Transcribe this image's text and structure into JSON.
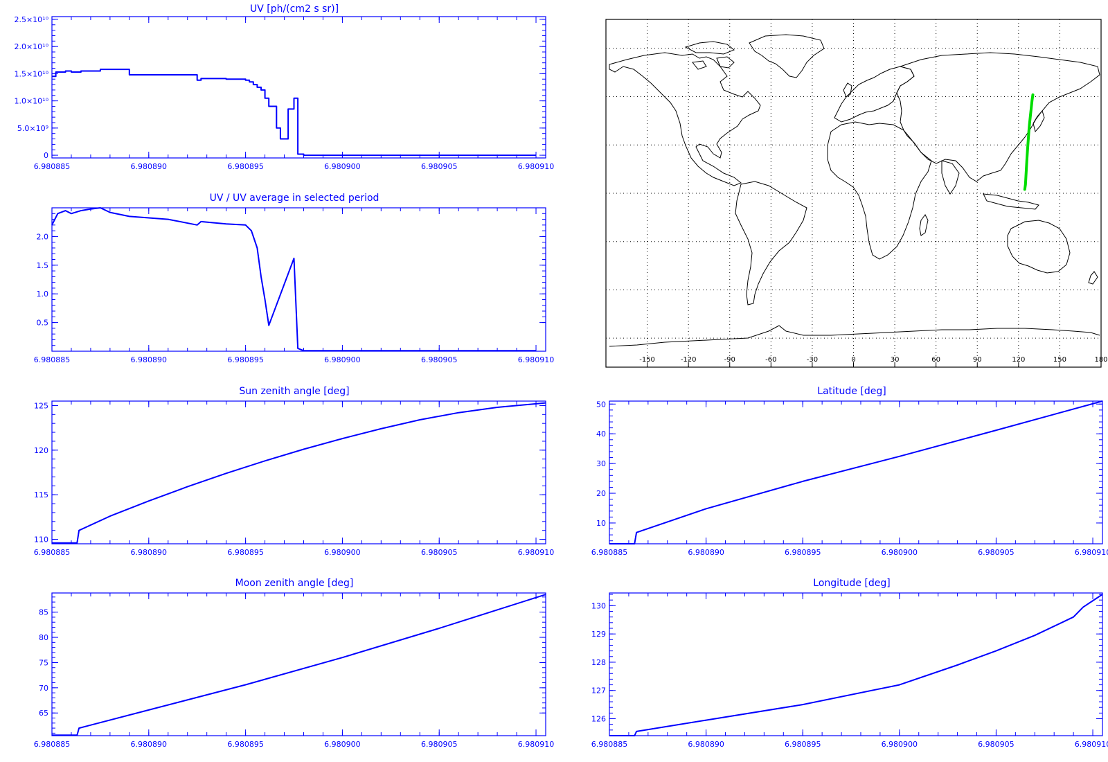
{
  "chart_data": [
    {
      "id": "uv",
      "type": "line",
      "step": true,
      "title": "UV [ph/(cm2 s sr)]",
      "xlabel": "",
      "ylabel": "",
      "xlim": [
        6.980885,
        6.9809105
      ],
      "ylim": [
        -500000000.0,
        25500000000.0
      ],
      "xtick_values": [
        6.980885,
        6.98089,
        6.980895,
        6.9809,
        6.980905,
        6.98091
      ],
      "xtick_labels": [
        "6.980885",
        "6.980890",
        "6.980895",
        "6.980900",
        "6.980905",
        "6.980910"
      ],
      "ytick_values": [
        0,
        5000000000.0,
        10000000000.0,
        15000000000.0,
        20000000000.0,
        25000000000.0
      ],
      "ytick_labels": [
        "0",
        "5.0×10⁹",
        "1.0×10¹⁰",
        "1.5×10¹⁰",
        "2.0×10¹⁰",
        "2.5×10¹⁰"
      ],
      "series": [
        {
          "color": "#0000ff",
          "x": [
            6.980885,
            6.9808852,
            6.9808857,
            6.980886,
            6.9808865,
            6.9808875,
            6.980889,
            6.9808925,
            6.9808927,
            6.980894,
            6.980895,
            6.9808952,
            6.9808954,
            6.9808956,
            6.9808958,
            6.980896,
            6.9808962,
            6.9808966,
            6.9808968,
            6.980897,
            6.9808972,
            6.9808975,
            6.9808977,
            6.980898,
            6.98091
          ],
          "values": [
            14500000000.0,
            15300000000.0,
            15500000000.0,
            15300000000.0,
            15500000000.0,
            15800000000.0,
            14800000000.0,
            13800000000.0,
            14100000000.0,
            14000000000.0,
            13800000000.0,
            13500000000.0,
            13000000000.0,
            12500000000.0,
            12000000000.0,
            10500000000.0,
            9000000000.0,
            5000000000.0,
            3000000000.0,
            3000000000.0,
            8500000000.0,
            10500000000.0,
            200000000.0,
            0.0,
            0.0
          ]
        }
      ]
    },
    {
      "id": "uv_ratio",
      "type": "line",
      "title": "UV / UV average in selected period",
      "xlabel": "",
      "ylabel": "",
      "xlim": [
        6.980885,
        6.9809105
      ],
      "ylim": [
        0.0,
        2.5
      ],
      "xtick_values": [
        6.980885,
        6.98089,
        6.980895,
        6.9809,
        6.980905,
        6.98091
      ],
      "xtick_labels": [
        "6.980885",
        "6.980890",
        "6.980895",
        "6.980900",
        "6.980905",
        "6.980910"
      ],
      "ytick_values": [
        0.5,
        1.0,
        1.5,
        2.0
      ],
      "ytick_labels": [
        "0.5",
        "1.0",
        "1.5",
        "2.0"
      ],
      "series": [
        {
          "color": "#0000ff",
          "x": [
            6.980885,
            6.9808853,
            6.9808857,
            6.980886,
            6.9808865,
            6.980887,
            6.9808875,
            6.980888,
            6.980889,
            6.980891,
            6.9808925,
            6.9808927,
            6.980894,
            6.980895,
            6.9808953,
            6.9808956,
            6.9808958,
            6.980896,
            6.9808962,
            6.9808975,
            6.9808977,
            6.980898,
            6.98091
          ],
          "values": [
            2.2,
            2.4,
            2.45,
            2.4,
            2.45,
            2.48,
            2.5,
            2.42,
            2.35,
            2.3,
            2.2,
            2.26,
            2.22,
            2.2,
            2.1,
            1.8,
            1.3,
            0.9,
            0.45,
            1.62,
            0.05,
            0.01,
            0.01
          ]
        }
      ]
    },
    {
      "id": "sun_zenith",
      "type": "line",
      "title": "Sun zenith angle [deg]",
      "xlabel": "",
      "ylabel": "",
      "xlim": [
        6.980885,
        6.9809105
      ],
      "ylim": [
        109.5,
        125.5
      ],
      "xtick_values": [
        6.980885,
        6.98089,
        6.980895,
        6.9809,
        6.980905,
        6.98091
      ],
      "xtick_labels": [
        "6.980885",
        "6.980890",
        "6.980895",
        "6.980900",
        "6.980905",
        "6.980910"
      ],
      "ytick_values": [
        110,
        115,
        120,
        125
      ],
      "ytick_labels": [
        "110",
        "115",
        "120",
        "125"
      ],
      "series": [
        {
          "color": "#0000ff",
          "x": [
            6.980885,
            6.9808863,
            6.9808864,
            6.980888,
            6.98089,
            6.980892,
            6.980894,
            6.980896,
            6.980898,
            6.9809,
            6.980902,
            6.980904,
            6.980906,
            6.980908,
            6.98091,
            6.9809105
          ],
          "values": [
            109.6,
            109.6,
            111.0,
            112.6,
            114.3,
            115.9,
            117.4,
            118.8,
            120.1,
            121.3,
            122.4,
            123.4,
            124.2,
            124.8,
            125.2,
            125.3
          ]
        }
      ]
    },
    {
      "id": "latitude",
      "type": "line",
      "title": "Latitude [deg]",
      "xlabel": "",
      "ylabel": "",
      "xlim": [
        6.980885,
        6.9809105
      ],
      "ylim": [
        3,
        51
      ],
      "xtick_values": [
        6.980885,
        6.98089,
        6.980895,
        6.9809,
        6.980905,
        6.98091
      ],
      "xtick_labels": [
        "6.980885",
        "6.980890",
        "6.980895",
        "6.980900",
        "6.980905",
        "6.980910"
      ],
      "ytick_values": [
        10,
        20,
        30,
        40,
        50
      ],
      "ytick_labels": [
        "10",
        "20",
        "30",
        "40",
        "50"
      ],
      "series": [
        {
          "color": "#0000ff",
          "x": [
            6.980885,
            6.9808863,
            6.9808864,
            6.98089,
            6.980895,
            6.9809,
            6.980905,
            6.9809105
          ],
          "values": [
            3.0,
            3.0,
            6.8,
            14.8,
            24.0,
            32.4,
            41.2,
            51.0
          ]
        }
      ]
    },
    {
      "id": "moon_zenith",
      "type": "line",
      "title": "Moon zenith angle [deg]",
      "xlabel": "",
      "ylabel": "",
      "xlim": [
        6.980885,
        6.9809105
      ],
      "ylim": [
        60.5,
        88.8
      ],
      "xtick_values": [
        6.980885,
        6.98089,
        6.980895,
        6.9809,
        6.980905,
        6.98091
      ],
      "xtick_labels": [
        "6.980885",
        "6.980890",
        "6.980895",
        "6.980900",
        "6.980905",
        "6.980910"
      ],
      "ytick_values": [
        65,
        70,
        75,
        80,
        85
      ],
      "ytick_labels": [
        "65",
        "70",
        "75",
        "80",
        "85"
      ],
      "series": [
        {
          "color": "#0000ff",
          "x": [
            6.980885,
            6.9808863,
            6.9808864,
            6.98089,
            6.980895,
            6.9809,
            6.980905,
            6.9809105
          ],
          "values": [
            60.6,
            60.6,
            62.0,
            65.6,
            70.6,
            76.0,
            81.8,
            88.5
          ]
        }
      ]
    },
    {
      "id": "longitude",
      "type": "line",
      "title": "Longitude [deg]",
      "xlabel": "",
      "ylabel": "",
      "xlim": [
        6.980885,
        6.9809105
      ],
      "ylim": [
        125.4,
        130.45
      ],
      "xtick_values": [
        6.980885,
        6.98089,
        6.980895,
        6.9809,
        6.980905,
        6.98091
      ],
      "xtick_labels": [
        "6.980885",
        "6.980890",
        "6.980895",
        "6.980900",
        "6.980905",
        "6.980910"
      ],
      "ytick_values": [
        126,
        127,
        128,
        129,
        130
      ],
      "ytick_labels": [
        "126",
        "127",
        "128",
        "129",
        "130"
      ],
      "series": [
        {
          "color": "#0000ff",
          "x": [
            6.980885,
            6.9808863,
            6.9808864,
            6.98089,
            6.980895,
            6.9809,
            6.980903,
            6.980905,
            6.980907,
            6.980909,
            6.9809095,
            6.9809105
          ],
          "values": [
            125.4,
            125.4,
            125.55,
            125.95,
            126.5,
            127.2,
            127.9,
            128.4,
            128.95,
            129.6,
            129.95,
            130.4
          ]
        }
      ]
    }
  ],
  "map": {
    "xtick_labels": [
      "-150",
      "-120",
      "-90",
      "-60",
      "-30",
      "0",
      "30",
      "60",
      "90",
      "120",
      "150",
      "180"
    ],
    "xtick_values": [
      -150,
      -120,
      -90,
      -60,
      -30,
      0,
      30,
      60,
      90,
      120,
      150,
      180
    ],
    "lat_lines": [
      75,
      50,
      25,
      0,
      -25,
      -50,
      -75
    ],
    "lon_lines": [
      -150,
      -120,
      -90,
      -60,
      -30,
      0,
      30,
      60,
      90,
      120,
      150
    ],
    "track_color": "#00dd00",
    "coast_color": "#000000",
    "track": [
      [
        124.5,
        2.0
      ],
      [
        125.0,
        4.5
      ],
      [
        125.2,
        7.0
      ],
      [
        125.6,
        12.0
      ],
      [
        126.0,
        17.0
      ],
      [
        126.5,
        22.0
      ],
      [
        127.0,
        27.0
      ],
      [
        127.5,
        32.0
      ],
      [
        128.0,
        36.0
      ],
      [
        128.6,
        40.0
      ],
      [
        129.2,
        44.0
      ],
      [
        129.8,
        48.0
      ],
      [
        130.4,
        51.0
      ]
    ]
  }
}
